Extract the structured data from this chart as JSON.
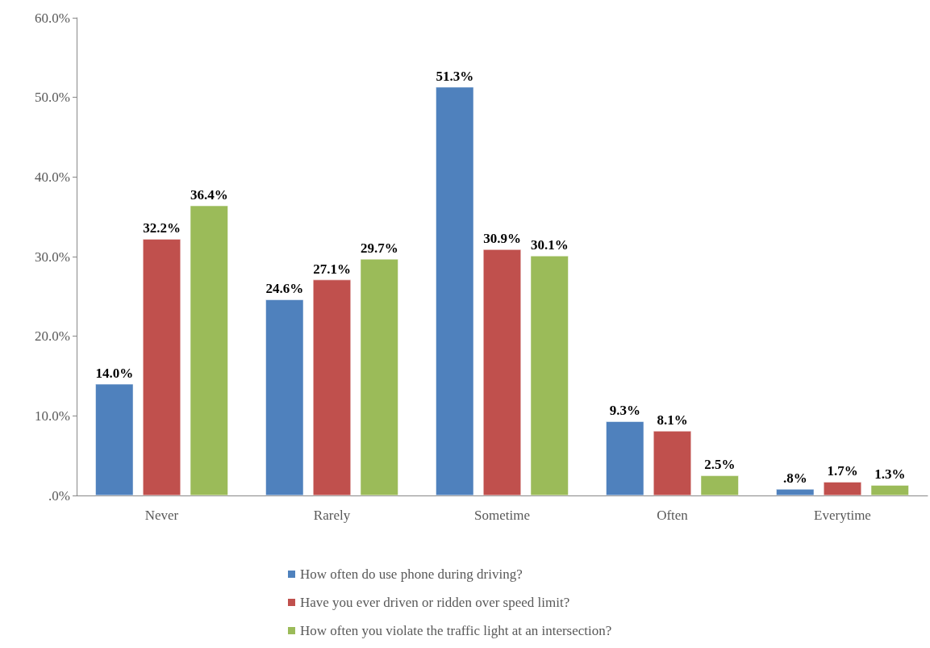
{
  "chart_data": {
    "type": "bar",
    "categories": [
      "Never",
      "Rarely",
      "Sometime",
      "Often",
      "Everytime"
    ],
    "series": [
      {
        "name": "How often do use phone during driving?",
        "color": "#4f81bd",
        "values": [
          14.0,
          24.6,
          51.3,
          9.3,
          0.8
        ],
        "value_labels": [
          "14.0%",
          "24.6%",
          "51.3%",
          "9.3%",
          ".8%"
        ]
      },
      {
        "name": "Have you ever driven or ridden over speed limit?",
        "color": "#c0504d",
        "values": [
          32.2,
          27.1,
          30.9,
          8.1,
          1.7
        ],
        "value_labels": [
          "32.2%",
          "27.1%",
          "30.9%",
          "8.1%",
          "1.7%"
        ]
      },
      {
        "name": "How often you violate the traffic light at an intersection?",
        "color": "#9bbb59",
        "values": [
          36.4,
          29.7,
          30.1,
          2.5,
          1.3
        ],
        "value_labels": [
          "36.4%",
          "29.7%",
          "30.1%",
          "2.5%",
          "1.3%"
        ]
      }
    ],
    "ylim": [
      0,
      60
    ],
    "yticks": [
      {
        "value": 0,
        "label": ".0%"
      },
      {
        "value": 10,
        "label": "10.0%"
      },
      {
        "value": 20,
        "label": "20.0%"
      },
      {
        "value": 30,
        "label": "30.0%"
      },
      {
        "value": 40,
        "label": "40.0%"
      },
      {
        "value": 50,
        "label": "50.0%"
      },
      {
        "value": 60,
        "label": "60.0%"
      }
    ],
    "grid": false,
    "legend": "bottom"
  }
}
